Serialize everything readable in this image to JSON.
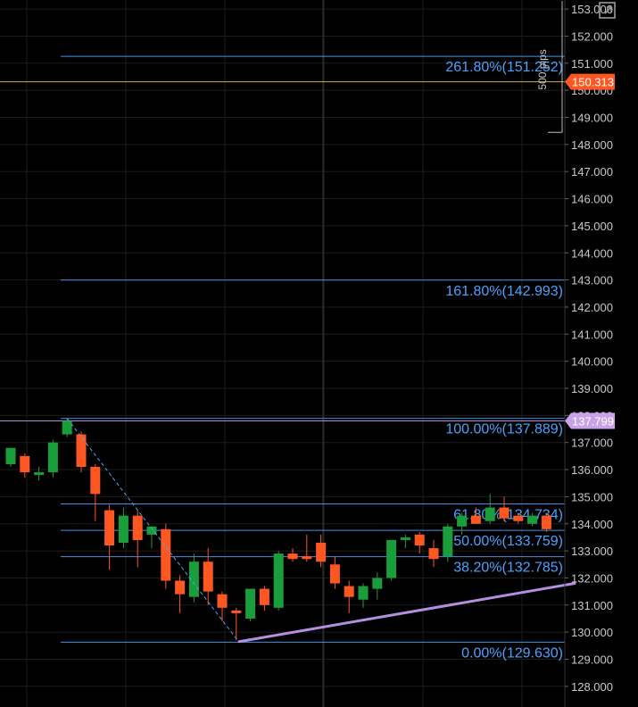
{
  "chart_data": {
    "type": "candlestick",
    "ylim": [
      127.5,
      153.3
    ],
    "y_ticks": [
      "128.000",
      "129.000",
      "130.000",
      "131.000",
      "132.000",
      "133.000",
      "134.000",
      "135.000",
      "136.000",
      "137.000",
      "138.000",
      "139.000",
      "140.000",
      "141.000",
      "142.000",
      "143.000",
      "144.000",
      "145.000",
      "146.000",
      "147.000",
      "148.000",
      "149.000",
      "150.000",
      "151.000",
      "152.000",
      "153.000"
    ],
    "candles": [
      {
        "o": 136.2,
        "h": 136.6,
        "l": 136.1,
        "c": 136.8
      },
      {
        "o": 136.5,
        "h": 136.6,
        "l": 135.7,
        "c": 135.9
      },
      {
        "o": 135.8,
        "h": 136.1,
        "l": 135.6,
        "c": 135.9
      },
      {
        "o": 135.9,
        "h": 137.1,
        "l": 135.7,
        "c": 137.0
      },
      {
        "o": 137.3,
        "h": 137.9,
        "l": 137.2,
        "c": 137.8
      },
      {
        "o": 137.3,
        "h": 137.4,
        "l": 135.9,
        "c": 136.1
      },
      {
        "o": 136.1,
        "h": 136.2,
        "l": 134.1,
        "c": 135.1
      },
      {
        "o": 134.5,
        "h": 134.7,
        "l": 132.3,
        "c": 133.2
      },
      {
        "o": 133.3,
        "h": 134.6,
        "l": 133.1,
        "c": 134.3
      },
      {
        "o": 134.3,
        "h": 134.5,
        "l": 132.4,
        "c": 133.4
      },
      {
        "o": 133.6,
        "h": 133.7,
        "l": 133.1,
        "c": 133.9
      },
      {
        "o": 133.8,
        "h": 134.0,
        "l": 131.6,
        "c": 131.9
      },
      {
        "o": 131.9,
        "h": 132.1,
        "l": 130.7,
        "c": 131.4
      },
      {
        "o": 131.3,
        "h": 132.9,
        "l": 131.1,
        "c": 132.6
      },
      {
        "o": 132.6,
        "h": 133.1,
        "l": 131.0,
        "c": 131.5
      },
      {
        "o": 131.4,
        "h": 131.5,
        "l": 130.4,
        "c": 130.9
      },
      {
        "o": 130.8,
        "h": 130.9,
        "l": 129.7,
        "c": 130.7
      },
      {
        "o": 130.5,
        "h": 131.6,
        "l": 130.4,
        "c": 131.6
      },
      {
        "o": 131.6,
        "h": 131.7,
        "l": 130.8,
        "c": 131.0
      },
      {
        "o": 130.9,
        "h": 133.0,
        "l": 130.8,
        "c": 132.9
      },
      {
        "o": 132.9,
        "h": 133.1,
        "l": 132.6,
        "c": 132.7
      },
      {
        "o": 132.8,
        "h": 133.6,
        "l": 132.6,
        "c": 132.7
      },
      {
        "o": 133.3,
        "h": 133.6,
        "l": 132.4,
        "c": 132.6
      },
      {
        "o": 132.5,
        "h": 132.8,
        "l": 131.6,
        "c": 131.8
      },
      {
        "o": 131.7,
        "h": 131.9,
        "l": 130.7,
        "c": 131.3
      },
      {
        "o": 131.2,
        "h": 131.8,
        "l": 130.9,
        "c": 131.7
      },
      {
        "o": 131.6,
        "h": 132.2,
        "l": 131.2,
        "c": 132.0
      },
      {
        "o": 132.0,
        "h": 133.4,
        "l": 131.9,
        "c": 133.4
      },
      {
        "o": 133.4,
        "h": 133.6,
        "l": 133.1,
        "c": 133.5
      },
      {
        "o": 133.6,
        "h": 133.7,
        "l": 132.9,
        "c": 133.2
      },
      {
        "o": 133.1,
        "h": 133.4,
        "l": 132.4,
        "c": 132.7
      },
      {
        "o": 132.8,
        "h": 134.0,
        "l": 132.6,
        "c": 133.9
      },
      {
        "o": 133.9,
        "h": 134.4,
        "l": 133.6,
        "c": 134.3
      },
      {
        "o": 134.3,
        "h": 134.6,
        "l": 134.0,
        "c": 134.0
      },
      {
        "o": 134.1,
        "h": 135.1,
        "l": 134.0,
        "c": 134.6
      },
      {
        "o": 134.6,
        "h": 135.0,
        "l": 134.1,
        "c": 134.2
      },
      {
        "o": 134.3,
        "h": 134.4,
        "l": 134.0,
        "c": 134.1
      },
      {
        "o": 134.0,
        "h": 134.4,
        "l": 133.9,
        "c": 134.3
      },
      {
        "o": 134.3,
        "h": 134.4,
        "l": 133.7,
        "c": 133.8
      }
    ],
    "fib_levels": [
      {
        "label": "261.80%(151.252)",
        "value": 151.252
      },
      {
        "label": "161.80%(142.993)",
        "value": 142.993
      },
      {
        "label": "100.00%(137.889)",
        "value": 137.889
      },
      {
        "label": "61.80%(134.734)",
        "value": 134.734
      },
      {
        "label": "50.00%(133.759)",
        "value": 133.759
      },
      {
        "label": "38.20%(132.785)",
        "value": 132.785
      },
      {
        "label": "0.00%(129.630)",
        "value": 129.63
      }
    ],
    "trendline": {
      "from": {
        "candle": 16.2,
        "price": 129.65
      },
      "to": {
        "candle": 40.0,
        "price": 131.8
      }
    },
    "fib_anchor_line": {
      "from": {
        "candle": 4,
        "price": 137.889
      },
      "to": {
        "candle": 16.2,
        "price": 129.63
      }
    },
    "price_badges": [
      {
        "label": "150.313",
        "value": 150.313,
        "color": "#ff5722"
      },
      {
        "label": "137.799",
        "value": 137.799,
        "color": "#c9a2e8"
      }
    ],
    "horizontal_lines": [
      {
        "value": 150.313,
        "color": "#d4b23a"
      },
      {
        "value": 137.799,
        "color": "#b48fe0"
      }
    ],
    "measure": {
      "label": "500 pips",
      "from_value": 153.3,
      "to_value": 148.45
    },
    "colors": {
      "up": "#1a9e3c",
      "down": "#ff5722",
      "fib": "#4aa3ff",
      "grid": "#1c1c1c",
      "trendline": "#b48fe0"
    }
  },
  "toolbar": {
    "expand_icon": "expand-icon"
  }
}
